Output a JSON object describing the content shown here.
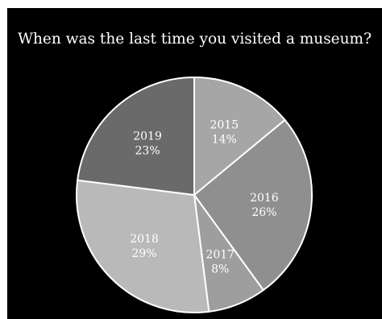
{
  "chart_data": {
    "type": "pie",
    "title": "When was the last time you visited a museum?",
    "slices": [
      {
        "label": "2015",
        "value": 14,
        "value_label": "14%",
        "color": "#a6a6a6"
      },
      {
        "label": "2016",
        "value": 26,
        "value_label": "26%",
        "color": "#8f8f8f"
      },
      {
        "label": "2017",
        "value": 8,
        "value_label": "8%",
        "color": "#9e9e9e"
      },
      {
        "label": "2018",
        "value": 29,
        "value_label": "29%",
        "color": "#b9b9b9"
      },
      {
        "label": "2019",
        "value": 23,
        "value_label": "23%",
        "color": "#6a6a6a"
      }
    ],
    "start_angle_deg": 0,
    "direction": "clockwise",
    "slice_border_color": "#ffffff",
    "background_color": "#000000",
    "legend": "none"
  }
}
